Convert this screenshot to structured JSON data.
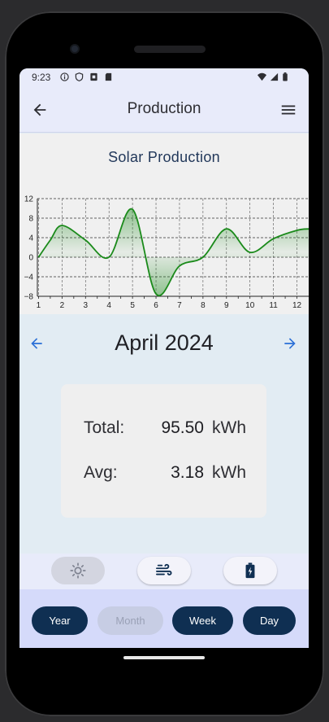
{
  "status_bar": {
    "time": "9:23",
    "left_icons": [
      "info-icon",
      "shield-icon",
      "sim-icon",
      "sd-card-icon"
    ],
    "right_icons": [
      "wifi-icon",
      "signal-icon",
      "battery-icon"
    ]
  },
  "app_bar": {
    "title": "Production",
    "back_icon": "arrow-back-icon",
    "menu_icon": "hamburger-menu-icon"
  },
  "chart_data": {
    "type": "area",
    "title": "Solar Production",
    "x": [
      1,
      1.5,
      2,
      3,
      4,
      5,
      6,
      7,
      8,
      9,
      10,
      11,
      12,
      12.5
    ],
    "values": [
      0,
      3.5,
      6.5,
      3.5,
      0,
      9.8,
      -7.5,
      -1.8,
      0,
      5.8,
      1.0,
      3.8,
      5.5,
      5.8
    ],
    "xlim": [
      0.95,
      12.5
    ],
    "ylim": [
      -8,
      12
    ],
    "x_ticks": [
      "1",
      "2",
      "3",
      "4",
      "5",
      "6",
      "7",
      "8",
      "9",
      "10",
      "11",
      "12"
    ],
    "y_ticks": [
      "12",
      "8",
      "4",
      "0",
      "−4",
      "−8"
    ],
    "grid": true,
    "line_color": "#1a8a1a"
  },
  "period": {
    "label": "April 2024",
    "prev_icon": "arrow-left-icon",
    "next_icon": "arrow-right-icon"
  },
  "summary": {
    "total_label": "Total:",
    "total_value": "95.50",
    "total_unit": "kWh",
    "avg_label": "Avg:",
    "avg_value": "3.18",
    "avg_unit": "kWh"
  },
  "source_tabs": [
    {
      "icon": "sun-icon",
      "active": true
    },
    {
      "icon": "wind-icon",
      "active": false
    },
    {
      "icon": "battery-charging-icon",
      "active": false
    }
  ],
  "range_buttons": {
    "year": "Year",
    "month": "Month",
    "week": "Week",
    "day": "Day",
    "selected": "Month"
  },
  "colors": {
    "accent": "#0f2f52",
    "arrow": "#2a6fd6",
    "chart_line": "#1a8a1a"
  }
}
